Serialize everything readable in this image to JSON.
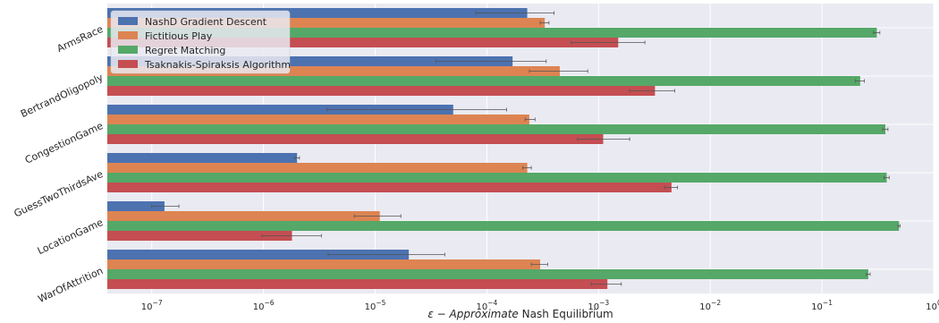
{
  "chart_data": {
    "type": "bar",
    "orientation": "horizontal",
    "x_scale": "log",
    "xlim": [
      4e-08,
      1
    ],
    "xlabel": "ε − Approximate Nash Equilibrium",
    "xlabel_italic_part": "ε − Approximate",
    "xlabel_plain_part": "Nash Equilibrium",
    "grid": true,
    "legend_position": "top-left",
    "x_ticks": [
      {
        "value": 1e-07,
        "base": "10",
        "exp": "−7"
      },
      {
        "value": 1e-06,
        "base": "10",
        "exp": "−6"
      },
      {
        "value": 1e-05,
        "base": "10",
        "exp": "−5"
      },
      {
        "value": 0.0001,
        "base": "10",
        "exp": "−4"
      },
      {
        "value": 0.001,
        "base": "10",
        "exp": "−3"
      },
      {
        "value": 0.01,
        "base": "10",
        "exp": "−2"
      },
      {
        "value": 0.1,
        "base": "10",
        "exp": "−1"
      },
      {
        "value": 1,
        "base": "10",
        "exp": "0"
      }
    ],
    "categories": [
      "ArmsRace",
      "BertrandOligopoly",
      "CongestionGame",
      "GuessTwoThirdsAve",
      "LocationGame",
      "WarOfAttrition"
    ],
    "series": [
      {
        "name": "NashD Gradient Descent",
        "color": "#4c72b0",
        "values": [
          0.00023,
          0.00017,
          5e-05,
          2e-06,
          1.3e-07,
          2e-05
        ],
        "err_low": [
          8e-05,
          3.5e-05,
          3.7e-06,
          1.9e-06,
          1e-07,
          3.8e-06
        ],
        "err_high": [
          0.0004,
          0.00034,
          0.00015,
          2.1e-06,
          1.75e-07,
          4.2e-05
        ]
      },
      {
        "name": "Fictitious Play",
        "color": "#dd8452",
        "values": [
          0.00033,
          0.00045,
          0.00024,
          0.00023,
          1.1e-05,
          0.0003
        ],
        "err_low": [
          0.0003,
          0.00024,
          0.00022,
          0.00021,
          6.5e-06,
          0.00025
        ],
        "err_high": [
          0.00036,
          0.0008,
          0.00027,
          0.00025,
          1.7e-05,
          0.00035
        ]
      },
      {
        "name": "Regret Matching",
        "color": "#55a868",
        "values": [
          0.31,
          0.22,
          0.37,
          0.38,
          0.49,
          0.26
        ],
        "err_low": [
          0.29,
          0.2,
          0.35,
          0.36,
          0.48,
          0.25
        ],
        "err_high": [
          0.33,
          0.24,
          0.39,
          0.4,
          0.5,
          0.27
        ]
      },
      {
        "name": "Tsaknakis-Spiraksis Algorithm",
        "color": "#c44e52",
        "values": [
          0.0015,
          0.0032,
          0.0011,
          0.0045,
          1.8e-06,
          0.0012
        ],
        "err_low": [
          0.00057,
          0.0019,
          0.00065,
          0.0039,
          9.7e-07,
          0.00086
        ],
        "err_high": [
          0.0026,
          0.0048,
          0.0019,
          0.0051,
          3.3e-06,
          0.0016
        ]
      }
    ]
  }
}
